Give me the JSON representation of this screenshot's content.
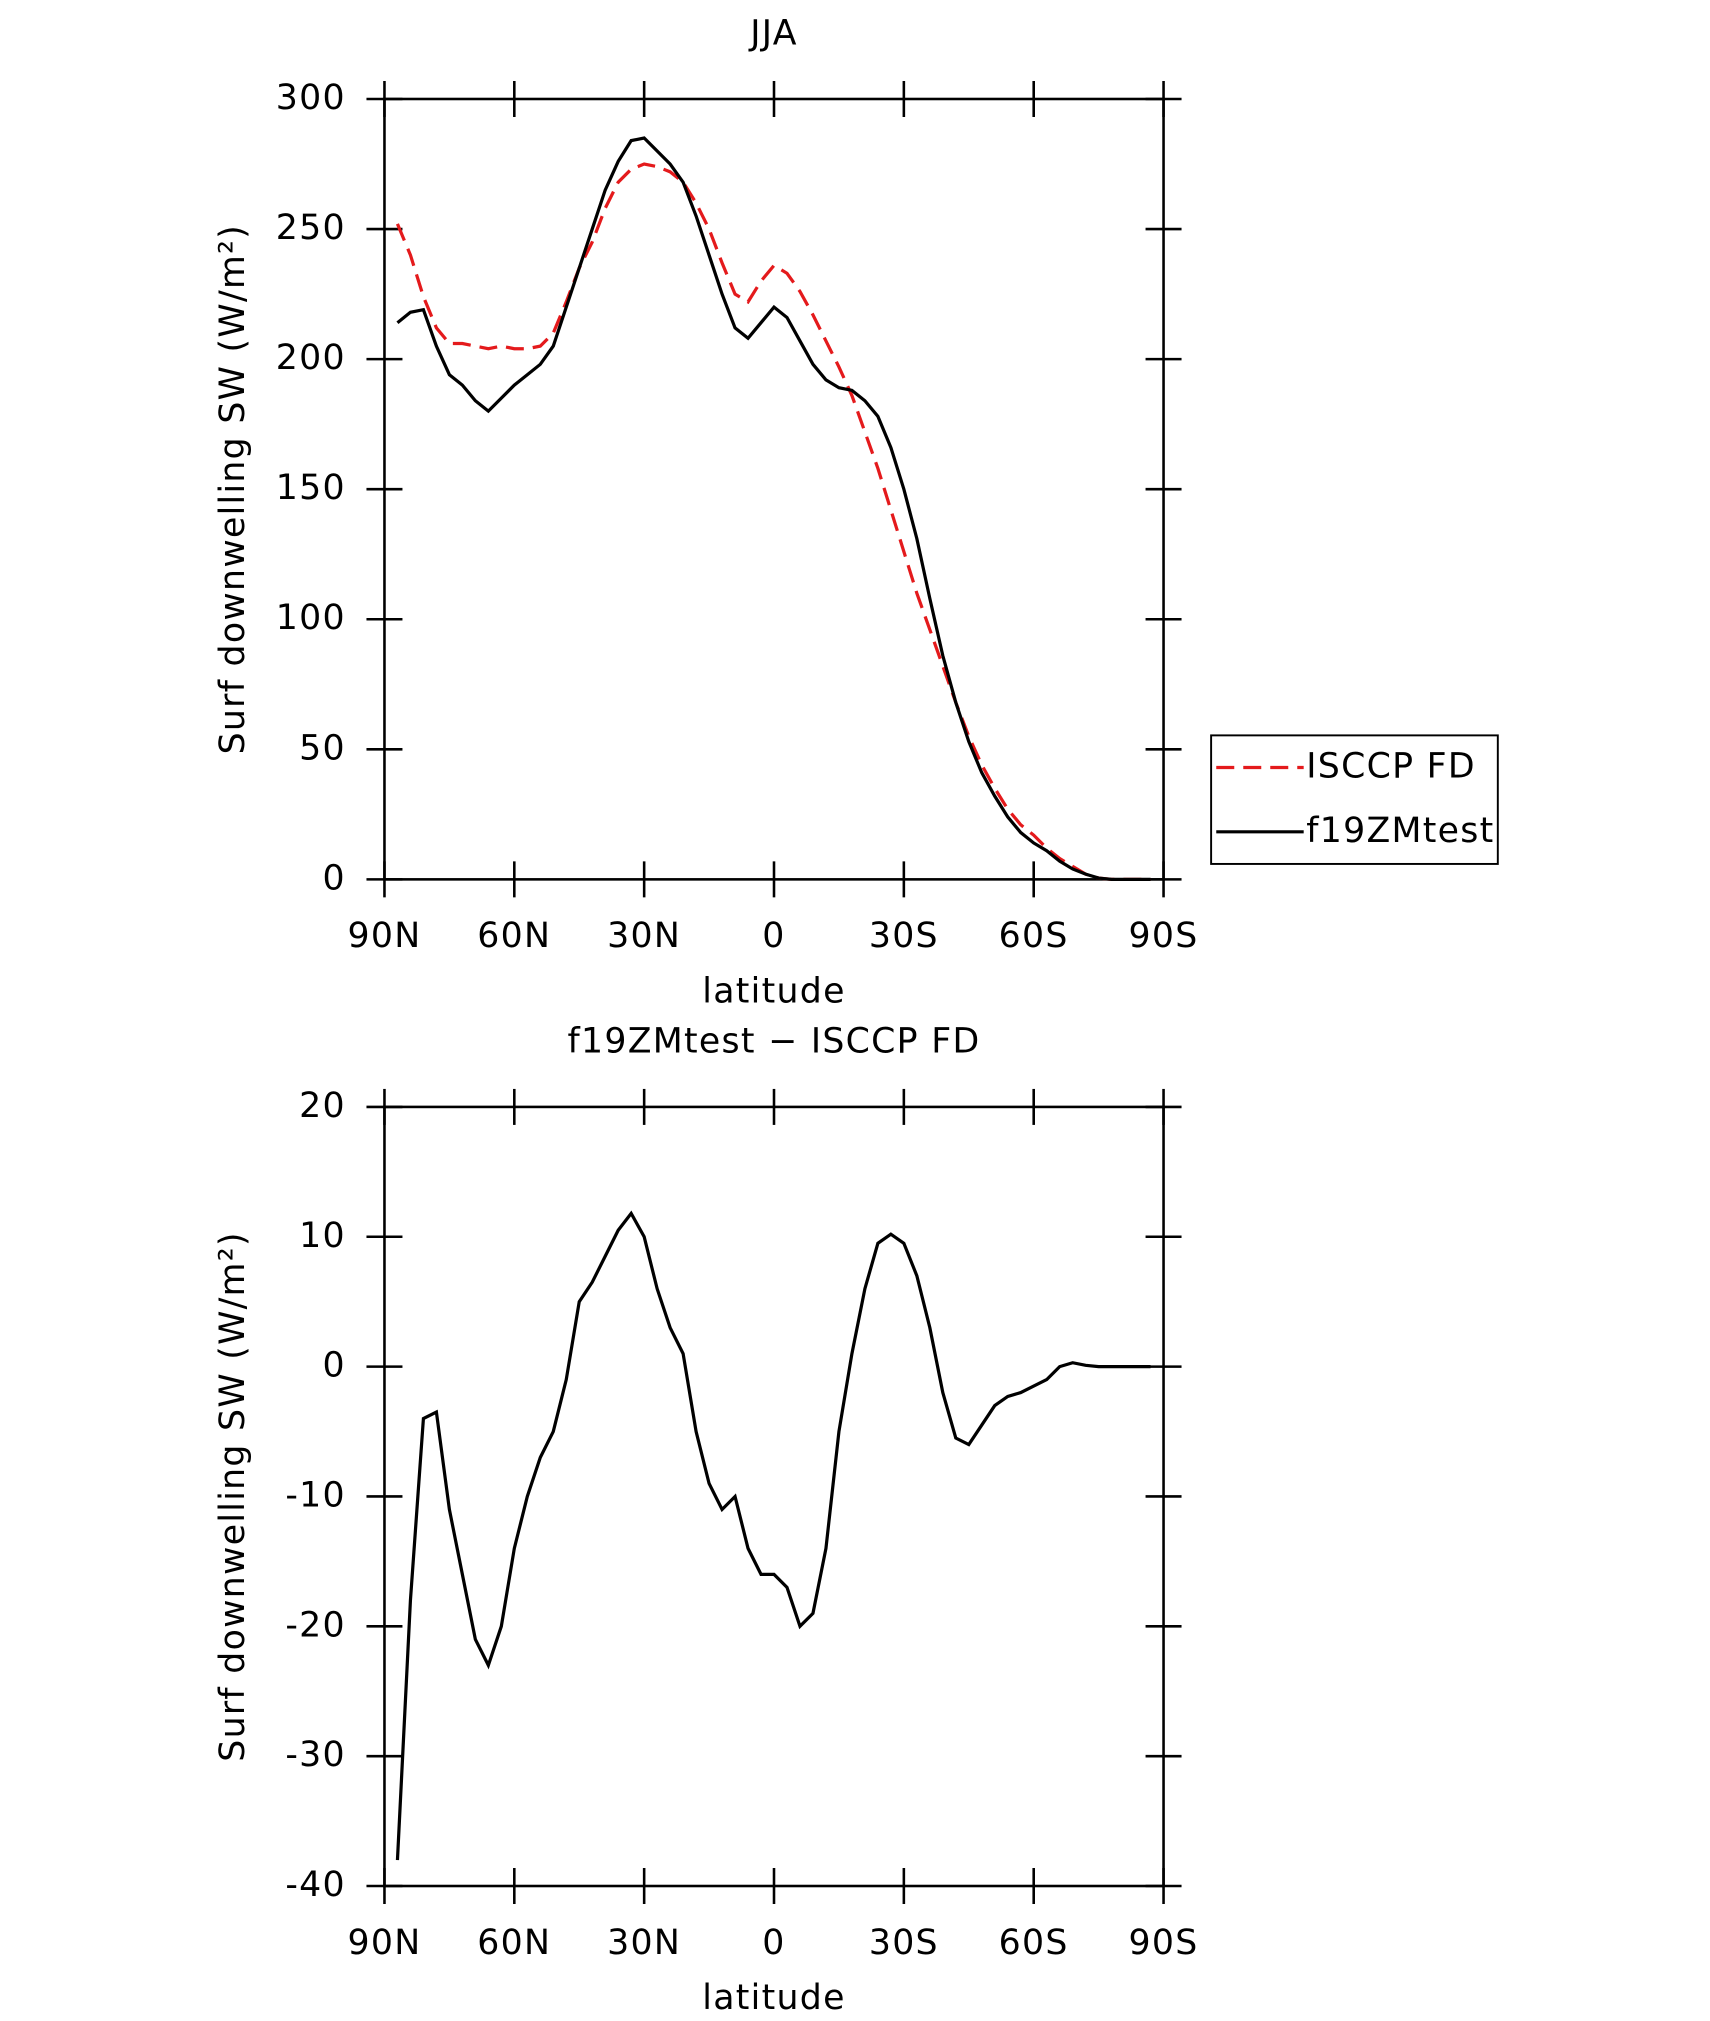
{
  "chart_data": [
    {
      "type": "line",
      "title": "JJA",
      "xlabel": "latitude",
      "ylabel": "Surf downwelling SW (W/m²)",
      "x": [
        87,
        84,
        81,
        78,
        75,
        72,
        69,
        66,
        63,
        60,
        57,
        54,
        51,
        48,
        45,
        42,
        39,
        36,
        33,
        30,
        27,
        24,
        21,
        18,
        15,
        12,
        9,
        6,
        3,
        0,
        -3,
        -6,
        -9,
        -12,
        -15,
        -18,
        -21,
        -24,
        -27,
        -30,
        -33,
        -36,
        -39,
        -42,
        -45,
        -48,
        -51,
        -54,
        -57,
        -60,
        -63,
        -66,
        -69,
        -72,
        -75,
        -78,
        -81,
        -84,
        -87
      ],
      "series": [
        {
          "name": "ISCCP FD",
          "color": "#e41a1c",
          "line_style": "dashed",
          "values": [
            252,
            240,
            224,
            212,
            206,
            206,
            205,
            204,
            205,
            204,
            204,
            205,
            210,
            222,
            235,
            245,
            258,
            268,
            273,
            275,
            274,
            272,
            268,
            260,
            250,
            237,
            225,
            222,
            230,
            236,
            233,
            226,
            217,
            207,
            197,
            186,
            172,
            158,
            142,
            126,
            110,
            96,
            82,
            68,
            55,
            44,
            35,
            27,
            21,
            17,
            12,
            8,
            5,
            2,
            0.5,
            0,
            0,
            0,
            0
          ]
        },
        {
          "name": "f19ZMtest",
          "color": "#000000",
          "line_style": "solid",
          "values": [
            214,
            218,
            219,
            205,
            194,
            190,
            184,
            180,
            185,
            190,
            194,
            198,
            205,
            220,
            235,
            250,
            265,
            276,
            284,
            285,
            280,
            275,
            268,
            255,
            240,
            225,
            212,
            208,
            214,
            220,
            216,
            207,
            198,
            192,
            189,
            188,
            184,
            178,
            166,
            150,
            131,
            108,
            86,
            68,
            53,
            41,
            32,
            24,
            18,
            14,
            11,
            7,
            4,
            2,
            0.5,
            0,
            0,
            0,
            0
          ]
        }
      ],
      "xlim": [
        90,
        -90
      ],
      "xticks": [
        {
          "value": 90,
          "label": "90N"
        },
        {
          "value": 60,
          "label": "60N"
        },
        {
          "value": 30,
          "label": "30N"
        },
        0,
        {
          "value": -30,
          "label": "30S"
        },
        {
          "value": -60,
          "label": "60S"
        },
        {
          "value": -90,
          "label": "90S"
        }
      ],
      "ylim": [
        0,
        300
      ],
      "yticks": [
        0,
        50,
        100,
        150,
        200,
        250,
        300
      ],
      "legend": "right"
    },
    {
      "type": "line",
      "title": "f19ZMtest − ISCCP FD",
      "xlabel": "latitude",
      "ylabel": "Surf downwelling SW (W/m²)",
      "x": [
        87,
        84,
        81,
        78,
        75,
        72,
        69,
        66,
        63,
        60,
        57,
        54,
        51,
        48,
        45,
        42,
        39,
        36,
        33,
        30,
        27,
        24,
        21,
        18,
        15,
        12,
        9,
        6,
        3,
        0,
        -3,
        -6,
        -9,
        -12,
        -15,
        -18,
        -21,
        -24,
        -27,
        -30,
        -33,
        -36,
        -39,
        -42,
        -45,
        -48,
        -51,
        -54,
        -57,
        -60,
        -63,
        -66,
        -69,
        -72,
        -75,
        -78,
        -81,
        -84,
        -87
      ],
      "series": [
        {
          "color": "#000000",
          "line_style": "solid",
          "values": [
            -38,
            -18,
            -4,
            -3.5,
            -11,
            -16,
            -21,
            -23,
            -20,
            -14,
            -10,
            -7,
            -5,
            -1,
            5,
            6.5,
            8.5,
            10.5,
            11.8,
            10,
            6,
            3,
            1,
            -5,
            -9,
            -11,
            -10,
            -14,
            -16,
            -16,
            -17,
            -20,
            -19,
            -14,
            -5,
            1,
            6,
            9.5,
            10.2,
            9.5,
            7,
            3,
            -2,
            -5.5,
            -6,
            -4.5,
            -3,
            -2.3,
            -2,
            -1.5,
            -1,
            0,
            0.3,
            0.1,
            0,
            0,
            0,
            0,
            0
          ]
        }
      ],
      "xlim": [
        90,
        -90
      ],
      "xticks": [
        {
          "value": 90,
          "label": "90N"
        },
        {
          "value": 60,
          "label": "60N"
        },
        {
          "value": 30,
          "label": "30N"
        },
        0,
        {
          "value": -30,
          "label": "30S"
        },
        {
          "value": -60,
          "label": "60S"
        },
        {
          "value": -90,
          "label": "90S"
        }
      ],
      "ylim": [
        -40,
        20
      ],
      "yticks": [
        -40,
        -30,
        -20,
        -10,
        0,
        10,
        20
      ]
    }
  ]
}
